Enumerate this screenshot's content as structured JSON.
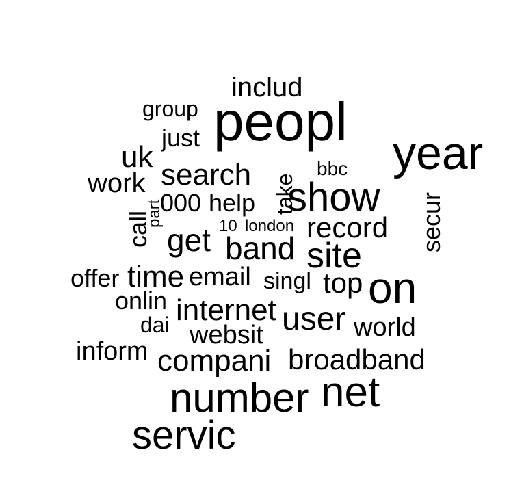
{
  "chart_data": {
    "type": "wordcloud",
    "color": "#000000",
    "words": [
      {
        "text": "peopl",
        "rank": 1
      },
      {
        "text": "year",
        "rank": 2
      },
      {
        "text": "servic",
        "rank": 3
      },
      {
        "text": "number",
        "rank": 4
      },
      {
        "text": "net",
        "rank": 5
      },
      {
        "text": "on",
        "rank": 6
      },
      {
        "text": "show",
        "rank": 7
      },
      {
        "text": "site",
        "rank": 8
      },
      {
        "text": "search",
        "rank": 9
      },
      {
        "text": "uk",
        "rank": 10
      },
      {
        "text": "get",
        "rank": 11
      },
      {
        "text": "band",
        "rank": 12
      },
      {
        "text": "record",
        "rank": 13
      },
      {
        "text": "compani",
        "rank": 14
      },
      {
        "text": "broadband",
        "rank": 15
      },
      {
        "text": "user",
        "rank": 16
      },
      {
        "text": "internet",
        "rank": 17
      },
      {
        "text": "includ",
        "rank": 18
      },
      {
        "text": "work",
        "rank": 19
      },
      {
        "text": "time",
        "rank": 20
      },
      {
        "text": "just",
        "rank": 21
      },
      {
        "text": "email",
        "rank": 22
      },
      {
        "text": "top",
        "rank": 23
      },
      {
        "text": "secur",
        "rank": 24
      },
      {
        "text": "websit",
        "rank": 25
      },
      {
        "text": "world",
        "rank": 26
      },
      {
        "text": "000",
        "rank": 27
      },
      {
        "text": "help",
        "rank": 28
      },
      {
        "text": "call",
        "rank": 29
      },
      {
        "text": "offer",
        "rank": 30
      },
      {
        "text": "inform",
        "rank": 31
      },
      {
        "text": "singl",
        "rank": 32
      },
      {
        "text": "onlin",
        "rank": 33
      },
      {
        "text": "take",
        "rank": 34
      },
      {
        "text": "group",
        "rank": 35
      },
      {
        "text": "dai",
        "rank": 36
      },
      {
        "text": "bbc",
        "rank": 37
      },
      {
        "text": "10",
        "rank": 38
      },
      {
        "text": "london",
        "rank": 39
      },
      {
        "text": "part",
        "rank": 40
      }
    ]
  }
}
